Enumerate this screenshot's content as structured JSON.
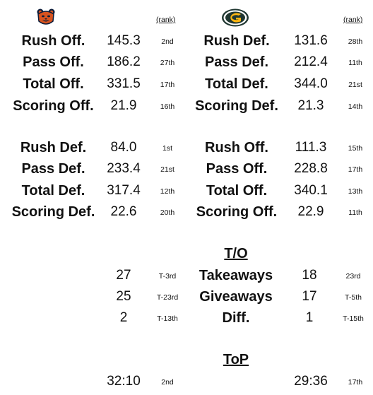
{
  "header": {
    "team_left_logo": "bears-logo-icon",
    "team_right_logo": "packers-logo-icon",
    "rank_header_left": "(rank)",
    "rank_header_right": "(rank)",
    "colors": {
      "bears_orange": "#d9531e",
      "bears_navy": "#0b1c3a",
      "packers_green": "#203731",
      "packers_gold": "#ffb612"
    }
  },
  "block1": {
    "rows": [
      {
        "left_label": "Rush Off.",
        "left_value": "145.3",
        "left_rank": "2nd",
        "right_label": "Rush Def.",
        "right_value": "131.6",
        "right_rank": "28th"
      },
      {
        "left_label": "Pass Off.",
        "left_value": "186.2",
        "left_rank": "27th",
        "right_label": "Pass Def.",
        "right_value": "212.4",
        "right_rank": "11th"
      },
      {
        "left_label": "Total Off.",
        "left_value": "331.5",
        "left_rank": "17th",
        "right_label": "Total Def.",
        "right_value": "344.0",
        "right_rank": "21st"
      },
      {
        "left_label": "Scoring Off.",
        "left_value": "21.9",
        "left_rank": "16th",
        "right_label": "Scoring Def.",
        "right_value": "21.3",
        "right_rank": "14th"
      }
    ]
  },
  "block2": {
    "rows": [
      {
        "left_label": "Rush Def.",
        "left_value": "84.0",
        "left_rank": "1st",
        "right_label": "Rush Off.",
        "right_value": "111.3",
        "right_rank": "15th"
      },
      {
        "left_label": "Pass Def.",
        "left_value": "233.4",
        "left_rank": "21st",
        "right_label": "Pass Off.",
        "right_value": "228.8",
        "right_rank": "17th"
      },
      {
        "left_label": "Total Def.",
        "left_value": "317.4",
        "left_rank": "12th",
        "right_label": "Total Off.",
        "right_value": "340.1",
        "right_rank": "13th"
      },
      {
        "left_label": "Scoring Def.",
        "left_value": "22.6",
        "left_rank": "20th",
        "right_label": "Scoring Off.",
        "right_value": "22.9",
        "right_rank": "11th"
      }
    ]
  },
  "turnovers": {
    "title": "T/O",
    "rows": [
      {
        "left_value": "27",
        "left_rank": "T-3rd",
        "label": "Takeaways",
        "right_value": "18",
        "right_rank": "23rd"
      },
      {
        "left_value": "25",
        "left_rank": "T-23rd",
        "label": "Giveaways",
        "right_value": "17",
        "right_rank": "T-5th"
      },
      {
        "left_value": "2",
        "left_rank": "T-13th",
        "label": "Diff.",
        "right_value": "1",
        "right_rank": "T-15th"
      }
    ]
  },
  "top": {
    "title": "ToP",
    "left_value": "32:10",
    "left_rank": "2nd",
    "right_value": "29:36",
    "right_rank": "17th"
  }
}
